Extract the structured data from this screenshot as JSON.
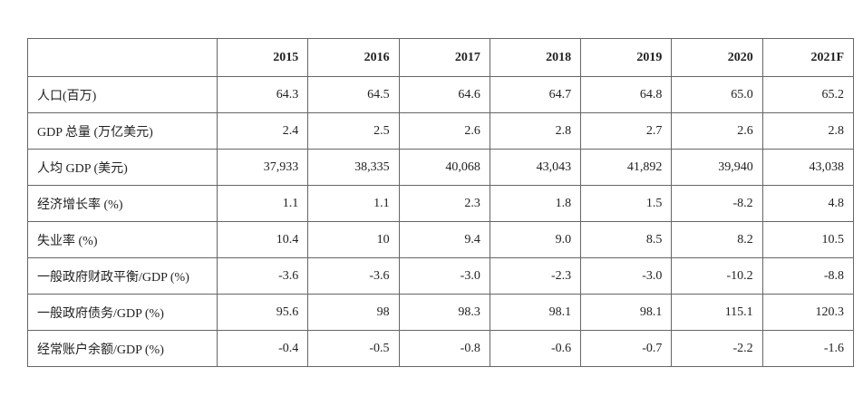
{
  "table": {
    "header": [
      "2015",
      "2016",
      "2017",
      "2018",
      "2019",
      "2020",
      "2021F"
    ],
    "rows": [
      [
        "人口(百万)",
        "64.3",
        "64.5",
        "64.6",
        "64.7",
        "64.8",
        "65.0",
        "65.2"
      ],
      [
        "GDP 总量 (万亿美元)",
        "2.4",
        "2.5",
        "2.6",
        "2.8",
        "2.7",
        "2.6",
        "2.8"
      ],
      [
        "人均 GDP (美元)",
        "37,933",
        "38,335",
        "40,068",
        "43,043",
        "41,892",
        "39,940",
        "43,038"
      ],
      [
        "经济增长率 (%)",
        "1.1",
        "1.1",
        "2.3",
        "1.8",
        "1.5",
        "-8.2",
        "4.8"
      ],
      [
        "失业率 (%)",
        "10.4",
        "10",
        "9.4",
        "9.0",
        "8.5",
        "8.2",
        "10.5"
      ],
      [
        "一般政府财政平衡/GDP (%)",
        "-3.6",
        "-3.6",
        "-3.0",
        "-2.3",
        "-3.0",
        "-10.2",
        "-8.8"
      ],
      [
        "一般政府债务/GDP (%)",
        "95.6",
        "98",
        "98.3",
        "98.1",
        "98.1",
        "115.1",
        "120.3"
      ],
      [
        "经常账户余额/GDP (%)",
        "-0.4",
        "-0.5",
        "-0.8",
        "-0.6",
        "-0.7",
        "-2.2",
        "-1.6"
      ]
    ]
  }
}
